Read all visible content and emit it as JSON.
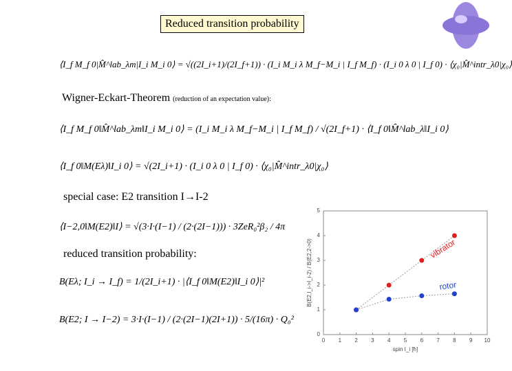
{
  "slide": {
    "title": "Reduced transition probability",
    "equations": [
      "⟨I_f M_f 0|M̂^lab_λm|I_i M_i 0⟩ = √((2I_i+1)/(2I_f+1)) · (I_i M_i λ M_f−M_i | I_f M_f) · (I_i 0 λ 0 | I_f 0) · ⟨χ₀|M̂^intr_λ0|χ₀⟩",
      "⟨I_f M_f 0‖M̂^lab_λm‖I_i M_i 0⟩ = (I_i M_i λ M_f−M_i | I_f M_f) / √(2I_f+1) · ⟨I_f 0‖M̂^lab_λ‖I_i 0⟩",
      "⟨I_f 0‖M(Eλ)‖I_i 0⟩ = √(2I_i+1) · (I_i 0 λ 0 | I_f 0) · ⟨χ₀|M̂^intr_λ0|χ₀⟩",
      "⟨I−2,0‖M(E2)‖I⟩ = √(3·I·(I−1) / (2·(2I−1))) · 3ZeR₀²β₂ / 4π",
      "B(Eλ; I_i → I_f) = 1/(2I_i+1) · |⟨I_f 0‖M(E2)‖I_i 0⟩|²",
      "B(E2; I → I−2) = 3·I·(I−1) / (2·(2I−1)(2I+1)) · 5/(16π) · Q₀²"
    ],
    "theorem": "Wigner-Eckart-Theorem",
    "theorem_note": "(reduction of an expectation value):",
    "special_case": "special case: E2 transition I→I-2",
    "reduced": "reduced transition probability:"
  },
  "chart_data": {
    "type": "line",
    "x_label": "spin I_i [ħ]",
    "y_label": "B(E2,I_i->I_i-2) / B(E2,2->0)",
    "x": [
      2,
      4,
      6,
      8
    ],
    "series": [
      {
        "name": "vibrator",
        "color": "#e02020",
        "values": [
          1,
          2,
          3,
          4
        ]
      },
      {
        "name": "rotor",
        "color": "#2040d0",
        "values": [
          1,
          1.43,
          1.57,
          1.65
        ]
      }
    ],
    "xlim": [
      0,
      10
    ],
    "xticks": [
      0,
      1,
      2,
      3,
      4,
      5,
      6,
      7,
      8,
      9,
      10
    ],
    "ylim": [
      0,
      5
    ],
    "yticks": [
      0,
      1,
      2,
      3,
      4,
      5
    ]
  }
}
